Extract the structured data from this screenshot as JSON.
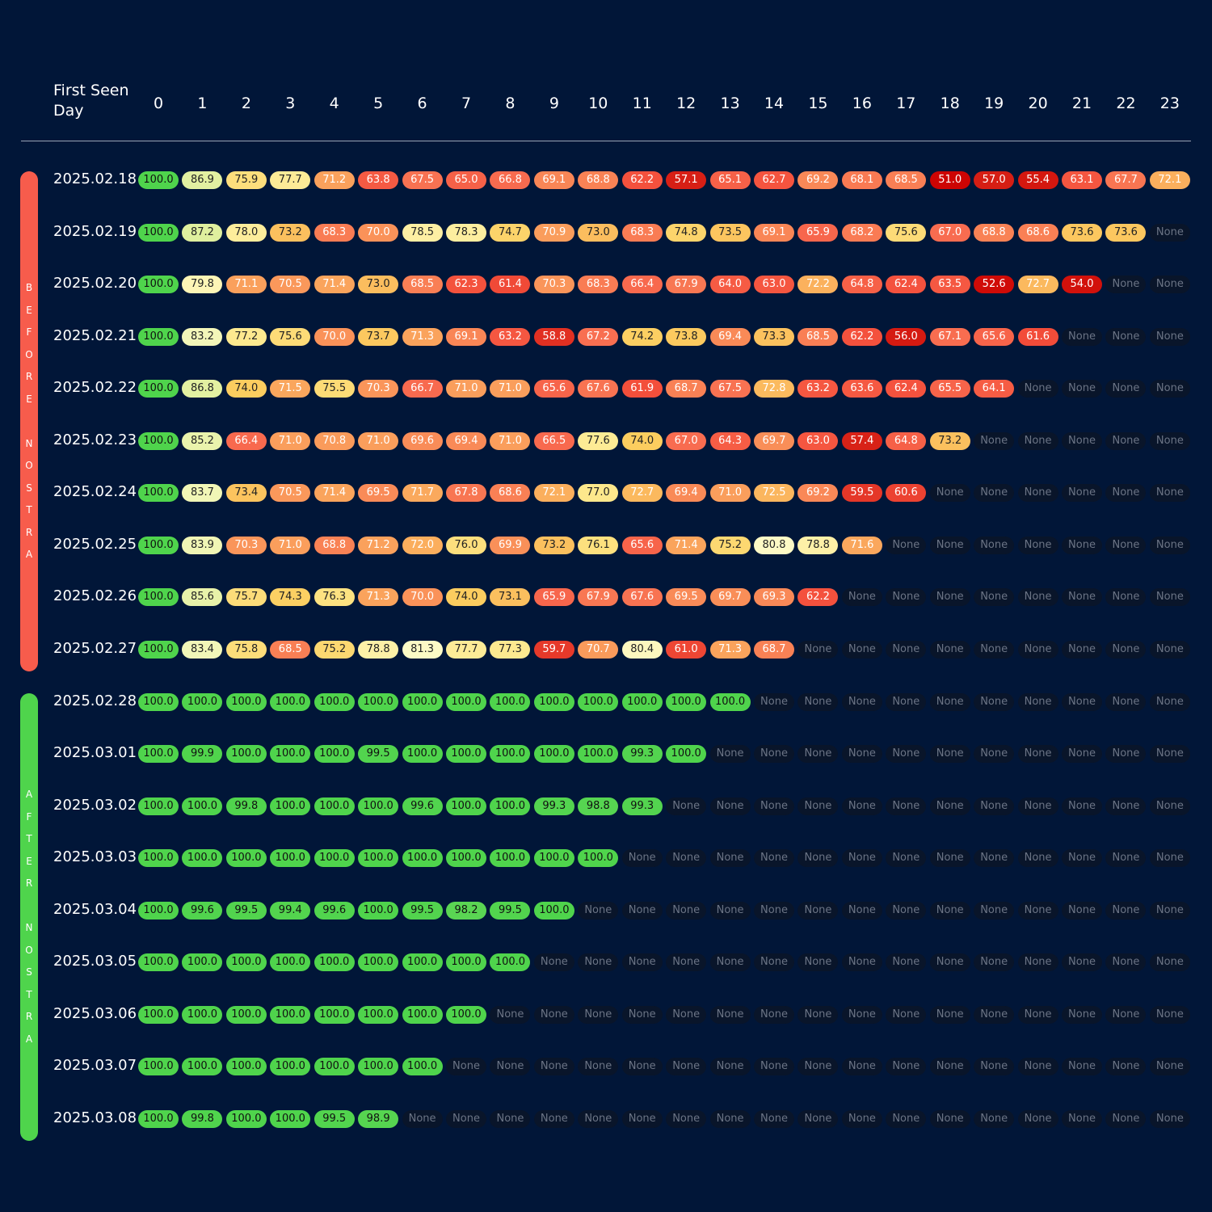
{
  "chart_data": {
    "type": "heatmap",
    "header_label": "First Seen\nDay",
    "columns": [
      "0",
      "1",
      "2",
      "3",
      "4",
      "5",
      "6",
      "7",
      "8",
      "9",
      "10",
      "11",
      "12",
      "13",
      "14",
      "15",
      "16",
      "17",
      "18",
      "19",
      "20",
      "21",
      "22",
      "23"
    ],
    "groups": [
      {
        "label": "BEFORE NOSTRA",
        "color": "#f75c4c",
        "rows": [
          0,
          9
        ]
      },
      {
        "label": "AFTER NOSTRA",
        "color": "#4fd44c",
        "rows": [
          10,
          18
        ]
      }
    ],
    "rows": [
      {
        "label": "2025.02.18",
        "values": [
          100.0,
          86.9,
          75.9,
          77.7,
          71.2,
          63.8,
          67.5,
          65.0,
          66.8,
          69.1,
          68.8,
          62.2,
          57.1,
          65.1,
          62.7,
          69.2,
          68.1,
          68.5,
          51.0,
          57.0,
          55.4,
          63.1,
          67.7,
          72.1
        ]
      },
      {
        "label": "2025.02.19",
        "values": [
          100.0,
          87.2,
          78.0,
          73.2,
          68.3,
          70.0,
          78.5,
          78.3,
          74.7,
          70.9,
          73.0,
          68.3,
          74.8,
          73.5,
          69.1,
          65.9,
          68.2,
          75.6,
          67.0,
          68.8,
          68.6,
          73.6,
          73.6,
          null
        ]
      },
      {
        "label": "2025.02.20",
        "values": [
          100.0,
          79.8,
          71.1,
          70.5,
          71.4,
          73.0,
          68.5,
          62.3,
          61.4,
          70.3,
          68.3,
          66.4,
          67.9,
          64.0,
          63.0,
          72.2,
          64.8,
          62.4,
          63.5,
          52.6,
          72.7,
          54.0,
          null,
          null
        ]
      },
      {
        "label": "2025.02.21",
        "values": [
          100.0,
          83.2,
          77.2,
          75.6,
          70.0,
          73.7,
          71.3,
          69.1,
          63.2,
          58.8,
          67.2,
          74.2,
          73.8,
          69.4,
          73.3,
          68.5,
          62.2,
          56.0,
          67.1,
          65.6,
          61.6,
          null,
          null,
          null
        ]
      },
      {
        "label": "2025.02.22",
        "values": [
          100.0,
          86.8,
          74.0,
          71.5,
          75.5,
          70.3,
          66.7,
          71.0,
          71.0,
          65.6,
          67.6,
          61.9,
          68.7,
          67.5,
          72.8,
          63.2,
          63.6,
          62.4,
          65.5,
          64.1,
          null,
          null,
          null,
          null
        ]
      },
      {
        "label": "2025.02.23",
        "values": [
          100.0,
          85.2,
          66.4,
          71.0,
          70.8,
          71.0,
          69.6,
          69.4,
          71.0,
          66.5,
          77.6,
          74.0,
          67.0,
          64.3,
          69.7,
          63.0,
          57.4,
          64.8,
          73.2,
          null,
          null,
          null,
          null,
          null
        ]
      },
      {
        "label": "2025.02.24",
        "values": [
          100.0,
          83.7,
          73.4,
          70.5,
          71.4,
          69.5,
          71.7,
          67.8,
          68.6,
          72.1,
          77.0,
          72.7,
          69.4,
          71.0,
          72.5,
          69.2,
          59.5,
          60.6,
          null,
          null,
          null,
          null,
          null,
          null
        ]
      },
      {
        "label": "2025.02.25",
        "values": [
          100.0,
          83.9,
          70.3,
          71.0,
          68.8,
          71.2,
          72.0,
          76.0,
          69.9,
          73.2,
          76.1,
          65.6,
          71.4,
          75.2,
          80.8,
          78.8,
          71.6,
          null,
          null,
          null,
          null,
          null,
          null,
          null
        ]
      },
      {
        "label": "2025.02.26",
        "values": [
          100.0,
          85.6,
          75.7,
          74.3,
          76.3,
          71.3,
          70.0,
          74.0,
          73.1,
          65.9,
          67.9,
          67.6,
          69.5,
          69.7,
          69.3,
          62.2,
          null,
          null,
          null,
          null,
          null,
          null,
          null,
          null
        ]
      },
      {
        "label": "2025.02.27",
        "values": [
          100.0,
          83.4,
          75.8,
          68.5,
          75.2,
          78.8,
          81.3,
          77.7,
          77.3,
          59.7,
          70.7,
          80.4,
          61.0,
          71.3,
          68.7,
          null,
          null,
          null,
          null,
          null,
          null,
          null,
          null,
          null
        ]
      },
      {
        "label": "2025.02.28",
        "values": [
          100.0,
          100.0,
          100.0,
          100.0,
          100.0,
          100.0,
          100.0,
          100.0,
          100.0,
          100.0,
          100.0,
          100.0,
          100.0,
          100.0,
          null,
          null,
          null,
          null,
          null,
          null,
          null,
          null,
          null,
          null
        ]
      },
      {
        "label": "2025.03.01",
        "values": [
          100.0,
          99.9,
          100.0,
          100.0,
          100.0,
          99.5,
          100.0,
          100.0,
          100.0,
          100.0,
          100.0,
          99.3,
          100.0,
          null,
          null,
          null,
          null,
          null,
          null,
          null,
          null,
          null,
          null,
          null
        ]
      },
      {
        "label": "2025.03.02",
        "values": [
          100.0,
          100.0,
          99.8,
          100.0,
          100.0,
          100.0,
          99.6,
          100.0,
          100.0,
          99.3,
          98.8,
          99.3,
          null,
          null,
          null,
          null,
          null,
          null,
          null,
          null,
          null,
          null,
          null,
          null
        ]
      },
      {
        "label": "2025.03.03",
        "values": [
          100.0,
          100.0,
          100.0,
          100.0,
          100.0,
          100.0,
          100.0,
          100.0,
          100.0,
          100.0,
          100.0,
          null,
          null,
          null,
          null,
          null,
          null,
          null,
          null,
          null,
          null,
          null,
          null,
          null
        ]
      },
      {
        "label": "2025.03.04",
        "values": [
          100.0,
          99.6,
          99.5,
          99.4,
          99.6,
          100.0,
          99.5,
          98.2,
          99.5,
          100.0,
          null,
          null,
          null,
          null,
          null,
          null,
          null,
          null,
          null,
          null,
          null,
          null,
          null,
          null
        ]
      },
      {
        "label": "2025.03.05",
        "values": [
          100.0,
          100.0,
          100.0,
          100.0,
          100.0,
          100.0,
          100.0,
          100.0,
          100.0,
          null,
          null,
          null,
          null,
          null,
          null,
          null,
          null,
          null,
          null,
          null,
          null,
          null,
          null,
          null
        ]
      },
      {
        "label": "2025.03.06",
        "values": [
          100.0,
          100.0,
          100.0,
          100.0,
          100.0,
          100.0,
          100.0,
          100.0,
          null,
          null,
          null,
          null,
          null,
          null,
          null,
          null,
          null,
          null,
          null,
          null,
          null,
          null,
          null,
          null
        ]
      },
      {
        "label": "2025.03.07",
        "values": [
          100.0,
          100.0,
          100.0,
          100.0,
          100.0,
          100.0,
          100.0,
          null,
          null,
          null,
          null,
          null,
          null,
          null,
          null,
          null,
          null,
          null,
          null,
          null,
          null,
          null,
          null,
          null
        ]
      },
      {
        "label": "2025.03.08",
        "values": [
          100.0,
          99.8,
          100.0,
          100.0,
          99.5,
          98.9,
          null,
          null,
          null,
          null,
          null,
          null,
          null,
          null,
          null,
          null,
          null,
          null,
          null,
          null,
          null,
          null,
          null,
          null
        ]
      }
    ],
    "missing_label": "None",
    "colors": {
      "background": "#011638",
      "green": "#4fd44c",
      "none_cell": "#09152a",
      "none_text": "#6b7485"
    }
  }
}
